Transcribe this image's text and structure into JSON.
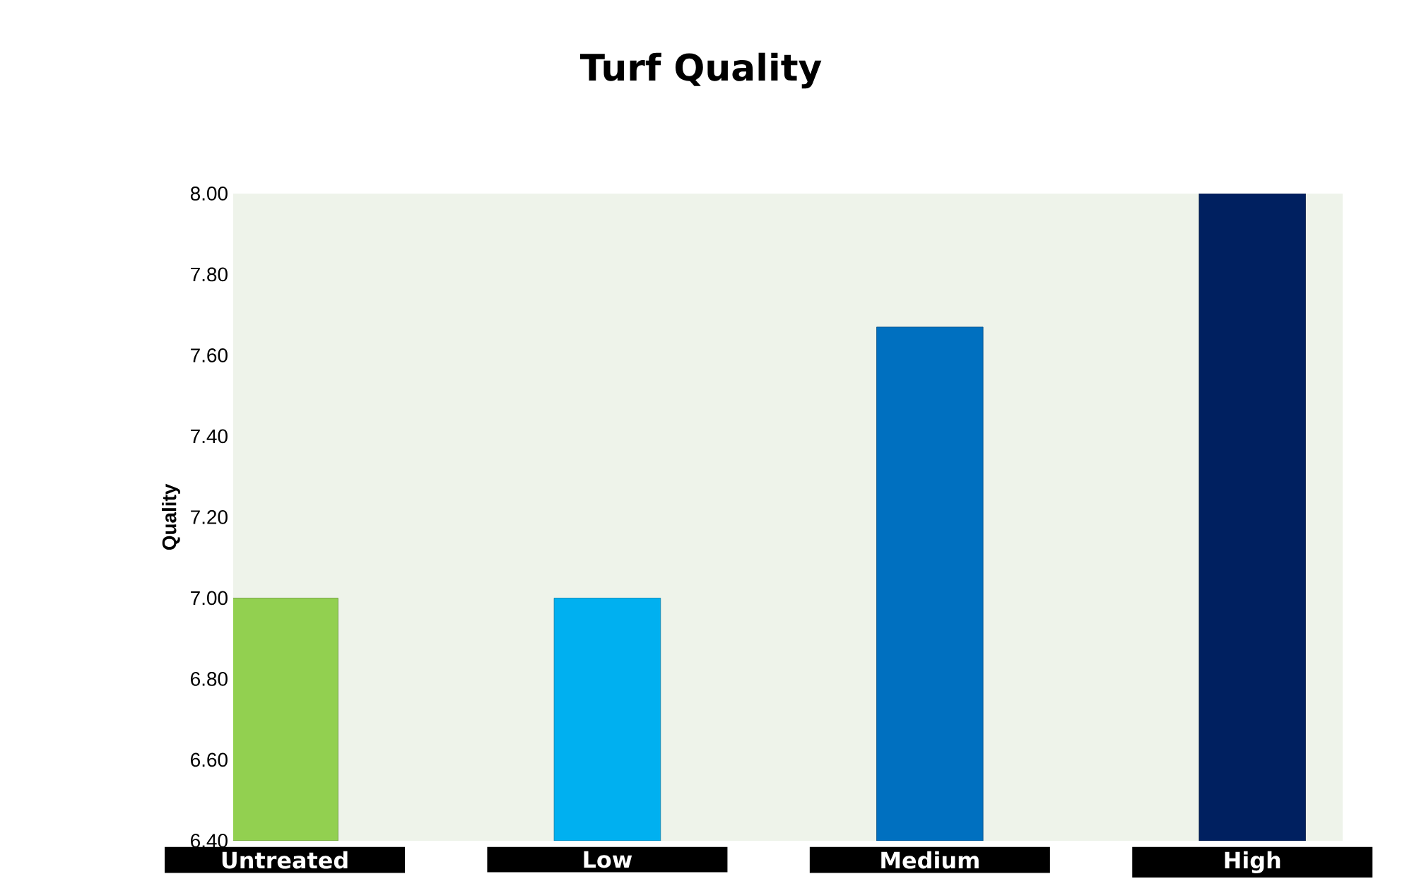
{
  "chart_data": {
    "type": "bar",
    "title": "Turf Quality",
    "ylabel": "Quality",
    "categories": [
      "Untreated",
      "Low",
      "Medium",
      "High"
    ],
    "values": [
      7.0,
      7.0,
      7.67,
      8.0
    ],
    "colors": [
      "#92d050",
      "#00b0f0",
      "#0070c0",
      "#002060"
    ],
    "ylim": [
      6.4,
      8.0
    ],
    "yticks": [
      {
        "value": 6.4,
        "label": "6.40"
      },
      {
        "value": 6.6,
        "label": "6.60"
      },
      {
        "value": 6.8,
        "label": "6.80"
      },
      {
        "value": 7.0,
        "label": "7.00"
      },
      {
        "value": 7.2,
        "label": "7.20"
      },
      {
        "value": 7.4,
        "label": "7.40"
      },
      {
        "value": 7.6,
        "label": "7.60"
      },
      {
        "value": 7.8,
        "label": "7.80"
      },
      {
        "value": 8.0,
        "label": "8.00"
      }
    ],
    "grid": false
  }
}
